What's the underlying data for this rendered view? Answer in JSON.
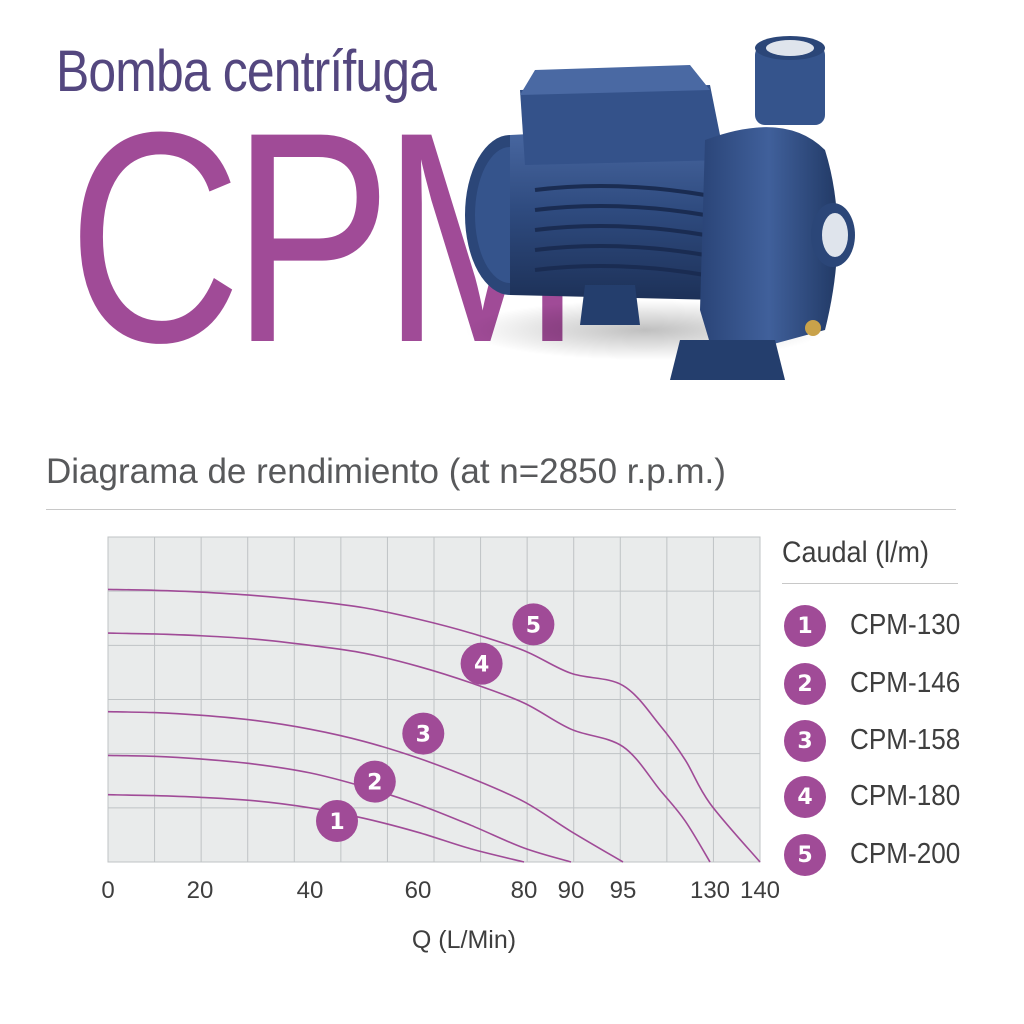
{
  "header": {
    "subtitle": "Bomba centrífuga",
    "product_name": "CPM"
  },
  "product_image": {
    "icon": "centrifugal-pump-image",
    "color": "#2e4a7e"
  },
  "section_title": "Diagrama de rendimiento (at n=2850 r.p.m.)",
  "legend": {
    "title": "Caudal (l/m)",
    "items": [
      {
        "badge": "1",
        "label": "CPM-130"
      },
      {
        "badge": "2",
        "label": "CPM-146"
      },
      {
        "badge": "3",
        "label": "CPM-158"
      },
      {
        "badge": "4",
        "label": "CPM-180"
      },
      {
        "badge": "5",
        "label": "CPM-200"
      }
    ]
  },
  "colors": {
    "accent": "#a04b97",
    "title": "#54477f",
    "grid_bg": "#e9ebeb",
    "grid_line": "#bfc3c5"
  },
  "chart_data": {
    "type": "line",
    "xlabel": "Q (L/Min)",
    "ylabel": "",
    "x_ticks": [
      "0",
      "20",
      "40",
      "60",
      "80",
      "90",
      "95",
      "130",
      "140"
    ],
    "grid": true,
    "legend_position": "right",
    "series": [
      {
        "name": "CPM-130",
        "badge": "1",
        "points": [
          [
            0,
            15.5
          ],
          [
            10,
            15.4
          ],
          [
            20,
            15.2
          ],
          [
            30,
            14.8
          ],
          [
            40,
            14.0
          ],
          [
            50,
            12.8
          ],
          [
            60,
            11.2
          ],
          [
            70,
            9.3
          ],
          [
            80,
            7.8
          ]
        ]
      },
      {
        "name": "CPM-146",
        "badge": "2",
        "points": [
          [
            0,
            20.0
          ],
          [
            10,
            19.9
          ],
          [
            20,
            19.6
          ],
          [
            30,
            19.0
          ],
          [
            40,
            18.0
          ],
          [
            50,
            16.4
          ],
          [
            60,
            14.4
          ],
          [
            70,
            12.0
          ],
          [
            80,
            9.4
          ],
          [
            90,
            7.8
          ]
        ]
      },
      {
        "name": "CPM-158",
        "badge": "3",
        "points": [
          [
            0,
            25.0
          ],
          [
            10,
            24.9
          ],
          [
            20,
            24.6
          ],
          [
            30,
            24.0
          ],
          [
            40,
            23.0
          ],
          [
            50,
            21.6
          ],
          [
            60,
            19.7
          ],
          [
            70,
            17.4
          ],
          [
            80,
            14.7
          ],
          [
            90,
            11.3
          ],
          [
            95,
            7.8
          ]
        ]
      },
      {
        "name": "CPM-180",
        "badge": "4",
        "points": [
          [
            0,
            34.0
          ],
          [
            10,
            33.9
          ],
          [
            20,
            33.7
          ],
          [
            30,
            33.3
          ],
          [
            40,
            32.6
          ],
          [
            50,
            31.7
          ],
          [
            60,
            30.2
          ],
          [
            70,
            28.3
          ],
          [
            80,
            26.0
          ],
          [
            90,
            23.0
          ],
          [
            95,
            21.0
          ],
          [
            110,
            16.0
          ],
          [
            120,
            12.5
          ],
          [
            130,
            7.8
          ]
        ]
      },
      {
        "name": "CPM-200",
        "badge": "5",
        "points": [
          [
            0,
            39.0
          ],
          [
            10,
            38.9
          ],
          [
            20,
            38.7
          ],
          [
            30,
            38.3
          ],
          [
            40,
            37.7
          ],
          [
            50,
            36.9
          ],
          [
            60,
            35.6
          ],
          [
            70,
            34.0
          ],
          [
            80,
            32.0
          ],
          [
            90,
            29.4
          ],
          [
            95,
            28.0
          ],
          [
            110,
            23.4
          ],
          [
            120,
            19.5
          ],
          [
            130,
            14.5
          ],
          [
            140,
            7.8
          ]
        ]
      }
    ],
    "markers": [
      {
        "badge": "1",
        "x": 45.0,
        "y": 12.5
      },
      {
        "badge": "2",
        "x": 52.0,
        "y": 17.0
      },
      {
        "badge": "3",
        "x": 61.0,
        "y": 22.5
      },
      {
        "badge": "4",
        "x": 72.0,
        "y": 30.5
      },
      {
        "badge": "5",
        "x": 82.0,
        "y": 35.0
      }
    ]
  }
}
